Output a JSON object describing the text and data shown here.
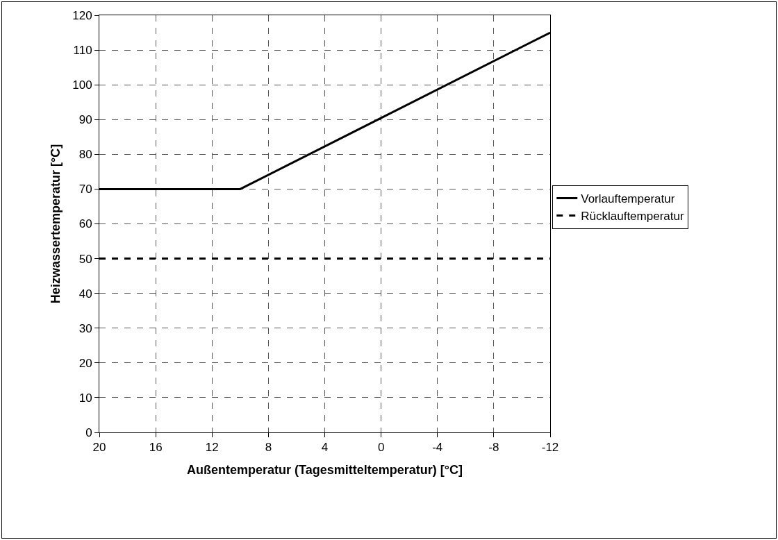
{
  "chart_data": {
    "type": "line",
    "xlabel": "Außentemperatur (Tagesmitteltemperatur) [°C]",
    "ylabel": "Heizwassertemperatur [°C]",
    "xlim": [
      20,
      -12
    ],
    "xticks": [
      20,
      16,
      12,
      8,
      4,
      0,
      -4,
      -8,
      -12
    ],
    "ylim": [
      0,
      120
    ],
    "yticks": [
      0,
      10,
      20,
      30,
      40,
      50,
      60,
      70,
      80,
      90,
      100,
      110,
      120
    ],
    "grid": true,
    "legend": "right",
    "marker": "none",
    "series": [
      {
        "name": "Vorlauftemperatur",
        "color": "#000000",
        "x": [
          20,
          10,
          -12
        ],
        "values": [
          70,
          70,
          115
        ],
        "line_style": "solid"
      },
      {
        "name": "Rücklauftemperatur",
        "color": "#000000",
        "x": [
          20,
          -12
        ],
        "values": [
          50,
          50
        ],
        "line_style": "dashed"
      }
    ]
  }
}
